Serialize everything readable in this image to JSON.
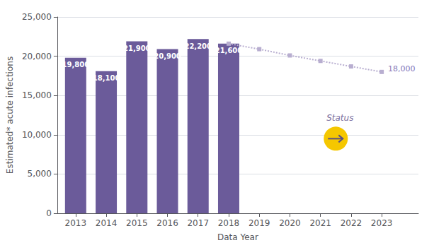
{
  "chart_data": {
    "type": "bar",
    "xlabel": "Data Year",
    "ylabel": "Estimated* acute infections",
    "xlim": [
      2012.4,
      2024.2
    ],
    "xticks": [
      2013,
      2014,
      2015,
      2016,
      2017,
      2018,
      2019,
      2020,
      2021,
      2022,
      2023
    ],
    "ylim": [
      0,
      25000
    ],
    "yticks": [
      0,
      {
        "value": 5000,
        "label": "5,000"
      },
      {
        "value": 10000,
        "label": "10,000"
      },
      {
        "value": 15000,
        "label": "15,000"
      },
      {
        "value": 20000,
        "label": "20,000"
      },
      {
        "value": 25000,
        "label": "25,000"
      }
    ],
    "grid": true,
    "series": [
      {
        "type": "bar",
        "color": "#6b5b9a",
        "data_labels": true,
        "x": [
          2013,
          2014,
          2015,
          2016,
          2017,
          2018
        ],
        "values": [
          19800,
          18100,
          21900,
          20900,
          22200,
          21600
        ],
        "value_labels": [
          "19,800",
          "18,100",
          "21,900",
          "20,900",
          "22,200",
          "21,600"
        ]
      },
      {
        "type": "line",
        "color": "#b8aed0",
        "line_style": "dotted",
        "marker": "square",
        "x": [
          2018,
          2019,
          2020,
          2021,
          2022,
          2023
        ],
        "values": [
          21600,
          20900,
          20100,
          19400,
          18700,
          18000
        ]
      }
    ],
    "annotations": [
      {
        "text": "18,000",
        "x": 2023,
        "y": 18000,
        "color": "#8878b8"
      },
      {
        "text": "Status",
        "x": 2021.5,
        "y": 9500,
        "color": "#7b6fa0",
        "circle_color": "#f5c700",
        "arrow_color": "#5b5080"
      }
    ]
  }
}
